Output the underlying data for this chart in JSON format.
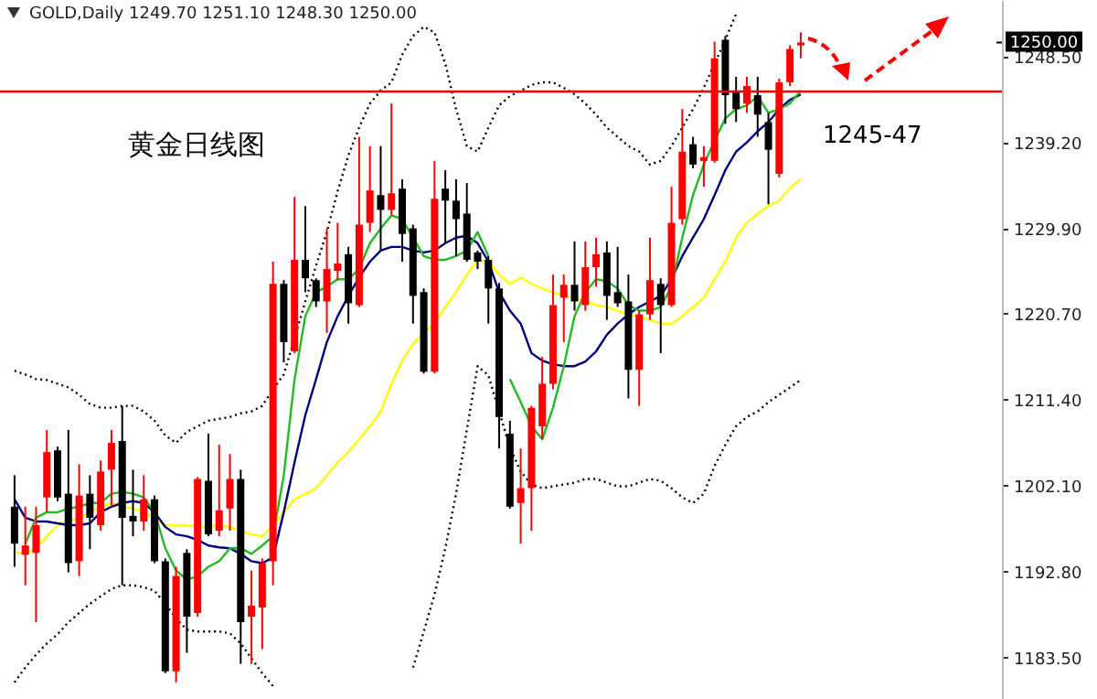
{
  "chart_data": {
    "type": "candlestick",
    "title": "GOLD,Daily 1249.70 1251.10 1248.30 1250.00",
    "categories": [
      null,
      null,
      null,
      null,
      null,
      null,
      null,
      null,
      null,
      null,
      null,
      null,
      null,
      null,
      null,
      null,
      null,
      null,
      null,
      null,
      null,
      null,
      null,
      null,
      null,
      null,
      null,
      null,
      null,
      null,
      null,
      null,
      null,
      null,
      null,
      null,
      null,
      null,
      null,
      null,
      null,
      null,
      null,
      null,
      null,
      null,
      null,
      null,
      null,
      null,
      null,
      null,
      null,
      null,
      null,
      null,
      null,
      null,
      null,
      null,
      null,
      null,
      null,
      null,
      null,
      null,
      null,
      null,
      null,
      null,
      null,
      null,
      null,
      null
    ],
    "ohlc": [
      [
        1199.8,
        1203.2,
        1193.3,
        1195.8
      ],
      [
        1194.6,
        1199.8,
        1191.3,
        1195.6
      ],
      [
        1194.8,
        1199.8,
        1187.3,
        1197.8
      ],
      [
        1200.8,
        1208.1,
        1199.2,
        1205.7
      ],
      [
        1205.9,
        1206.3,
        1200.4,
        1200.8
      ],
      [
        1201.2,
        1208.1,
        1192.7,
        1193.7
      ],
      [
        1193.9,
        1204.4,
        1192.3,
        1201.0
      ],
      [
        1201.2,
        1203.2,
        1195.2,
        1198.6
      ],
      [
        1197.8,
        1204.8,
        1197.2,
        1203.6
      ],
      [
        1203.8,
        1208.1,
        1199.8,
        1206.7
      ],
      [
        1206.9,
        1210.7,
        1191.3,
        1198.6
      ],
      [
        1198.8,
        1203.8,
        1196.6,
        1198.2
      ],
      [
        1198.2,
        1203.2,
        1197.2,
        1200.6
      ],
      [
        1200.6,
        1201.0,
        1193.7,
        1193.9
      ],
      [
        1193.9,
        1194.2,
        1181.8,
        1182.0
      ],
      [
        1182.0,
        1193.3,
        1180.8,
        1192.3
      ],
      [
        1194.8,
        1195.2,
        1184.0,
        1187.9
      ],
      [
        1188.3,
        1203.0,
        1187.9,
        1202.8
      ],
      [
        1202.6,
        1207.7,
        1196.6,
        1196.8
      ],
      [
        1197.2,
        1206.5,
        1196.6,
        1199.4
      ],
      [
        1199.6,
        1205.5,
        1197.2,
        1202.8
      ],
      [
        1202.8,
        1203.8,
        1182.8,
        1187.3
      ],
      [
        1187.9,
        1192.9,
        1182.8,
        1189.1
      ],
      [
        1188.9,
        1194.2,
        1184.4,
        1193.7
      ],
      [
        1193.9,
        1226.3,
        1191.3,
        1223.9
      ],
      [
        1223.9,
        1224.3,
        1215.4,
        1217.6
      ],
      [
        1216.6,
        1233.3,
        1216.4,
        1226.5
      ],
      [
        1226.5,
        1232.3,
        1223.0,
        1224.5
      ],
      [
        1224.3,
        1224.5,
        1221.4,
        1222.0
      ],
      [
        1222.0,
        1229.9,
        1218.6,
        1225.5
      ],
      [
        1225.3,
        1230.5,
        1224.3,
        1226.1
      ],
      [
        1227.1,
        1227.9,
        1219.6,
        1221.8
      ],
      [
        1221.6,
        1239.8,
        1221.4,
        1230.3
      ],
      [
        1230.5,
        1238.8,
        1229.5,
        1234.0
      ],
      [
        1233.5,
        1238.8,
        1227.5,
        1231.9
      ],
      [
        1231.9,
        1243.4,
        1231.3,
        1233.7
      ],
      [
        1234.2,
        1235.2,
        1226.3,
        1229.3
      ],
      [
        1229.9,
        1230.3,
        1219.6,
        1222.6
      ],
      [
        1223.0,
        1223.4,
        1214.2,
        1214.4
      ],
      [
        1214.4,
        1237.2,
        1214.2,
        1233.1
      ],
      [
        1234.2,
        1236.2,
        1228.3,
        1232.9
      ],
      [
        1232.9,
        1235.2,
        1226.9,
        1230.9
      ],
      [
        1231.5,
        1234.8,
        1226.3,
        1226.5
      ],
      [
        1227.3,
        1227.5,
        1225.5,
        1226.3
      ],
      [
        1226.5,
        1226.9,
        1219.6,
        1223.4
      ],
      [
        1223.4,
        1224.0,
        1206.1,
        1209.5
      ],
      [
        1207.7,
        1209.1,
        1199.6,
        1199.8
      ],
      [
        1200.2,
        1206.1,
        1195.8,
        1201.8
      ],
      [
        1201.8,
        1210.7,
        1197.2,
        1210.5
      ],
      [
        1208.5,
        1216.0,
        1207.1,
        1213.1
      ],
      [
        1213.1,
        1224.9,
        1212.5,
        1221.6
      ],
      [
        1222.4,
        1224.9,
        1217.6,
        1223.8
      ],
      [
        1223.8,
        1228.5,
        1221.0,
        1222.0
      ],
      [
        1221.6,
        1228.5,
        1221.0,
        1225.7
      ],
      [
        1225.7,
        1228.9,
        1223.6,
        1227.1
      ],
      [
        1227.3,
        1228.5,
        1220.0,
        1222.6
      ],
      [
        1223.0,
        1227.9,
        1221.4,
        1221.8
      ],
      [
        1222.0,
        1224.9,
        1211.5,
        1214.6
      ],
      [
        1214.6,
        1221.0,
        1210.7,
        1220.6
      ],
      [
        1220.6,
        1228.9,
        1220.0,
        1224.3
      ],
      [
        1223.9,
        1224.5,
        1216.4,
        1221.6
      ],
      [
        1221.6,
        1234.4,
        1221.4,
        1230.5
      ],
      [
        1230.9,
        1242.8,
        1230.3,
        1238.2
      ],
      [
        1239.0,
        1239.8,
        1236.4,
        1236.8
      ],
      [
        1237.2,
        1238.8,
        1234.4,
        1237.6
      ],
      [
        1237.2,
        1250.1,
        1237.0,
        1248.3
      ],
      [
        1250.3,
        1250.7,
        1241.2,
        1244.3
      ],
      [
        1244.7,
        1246.3,
        1241.4,
        1242.8
      ],
      [
        1243.4,
        1246.3,
        1242.4,
        1245.3
      ],
      [
        1244.3,
        1246.3,
        1239.8,
        1242.2
      ],
      [
        1241.4,
        1242.4,
        1232.5,
        1238.4
      ],
      [
        1235.8,
        1246.1,
        1235.4,
        1245.7
      ],
      [
        1245.7,
        1249.7,
        1245.3,
        1249.3
      ],
      [
        1249.7,
        1251.1,
        1248.3,
        1250.0
      ]
    ],
    "colors": [
      "#000000",
      "#ff0000",
      "#ff0000",
      "#ff0000",
      "#000000",
      "#000000",
      "#ff0000",
      "#000000",
      "#ff0000",
      "#ff0000",
      "#000000",
      "#000000",
      "#ff0000",
      "#000000",
      "#000000",
      "#ff0000",
      "#000000",
      "#ff0000",
      "#000000",
      "#ff0000",
      "#ff0000",
      "#000000",
      "#ff0000",
      "#ff0000",
      "#ff0000",
      "#000000",
      "#ff0000",
      "#000000",
      "#000000",
      "#ff0000",
      "#ff0000",
      "#000000",
      "#ff0000",
      "#ff0000",
      "#000000",
      "#ff0000",
      "#000000",
      "#000000",
      "#000000",
      "#ff0000",
      "#000000",
      "#000000",
      "#000000",
      "#000000",
      "#000000",
      "#000000",
      "#000000",
      "#ff0000",
      "#ff0000",
      "#ff0000",
      "#ff0000",
      "#ff0000",
      "#000000",
      "#ff0000",
      "#ff0000",
      "#000000",
      "#000000",
      "#000000",
      "#ff0000",
      "#ff0000",
      "#000000",
      "#ff0000",
      "#ff0000",
      "#000000",
      "#ff0000",
      "#ff0000",
      "#000000",
      "#000000",
      "#ff0000",
      "#000000",
      "#000000",
      "#ff0000",
      "#ff0000",
      "#ff0000"
    ],
    "ylim": [
      1179.0,
      1254.6
    ],
    "yticks": [
      {
        "value": 1248.5,
        "label": "1248.50"
      },
      {
        "value": 1239.2,
        "label": "1239.20"
      },
      {
        "value": 1229.9,
        "label": "1229.90"
      },
      {
        "value": 1220.7,
        "label": "1220.70"
      },
      {
        "value": 1211.4,
        "label": "1211.40"
      },
      {
        "value": 1202.1,
        "label": "1202.10"
      },
      {
        "value": 1192.8,
        "label": "1192.80"
      },
      {
        "value": 1183.5,
        "label": "1183.50"
      }
    ],
    "tick_labels": "y",
    "ref_lines": [
      {
        "axis": "y",
        "value": 1244.7,
        "color": "#ff0000"
      }
    ],
    "annotations": [
      "黄金日线图",
      "1245-47",
      "1250.00"
    ],
    "series": [
      {
        "type": "line",
        "color": "#000000",
        "line_style": "dotted",
        "values": [
          1214.5,
          1214.1,
          1213.6,
          1213.5,
          1213.1,
          1212.7,
          1211.9,
          1210.9,
          1210.5,
          1210.5,
          1210.7,
          1210.7,
          1210.1,
          1209.1,
          1207.5,
          1206.7,
          1207.9,
          1208.5,
          1209.1,
          1209.3,
          1209.5,
          1209.9,
          1210.1,
          1210.7,
          1212.5,
          1214.1,
          1218.0,
          1222.0,
          1225.9,
          1229.5,
          1233.9,
          1237.8,
          1240.8,
          1243.4,
          1244.8,
          1245.7,
          1248.7,
          1250.7,
          1251.7,
          1251.1,
          1247.7,
          1242.8,
          1238.8,
          1238.2,
          1240.8,
          1243.2,
          1244.2,
          1244.8,
          1245.4,
          1245.7,
          1245.7,
          1245.1,
          1244.4,
          1243.4,
          1242.2,
          1240.8,
          1239.8,
          1238.8,
          1238.2,
          1236.8,
          1237.2,
          1238.8,
          1240.8,
          1242.8,
          1245.1,
          1247.7,
          1250.3,
          1253.1,
          null,
          null,
          null,
          null,
          null,
          null
        ]
      },
      {
        "type": "line",
        "color": "#000000",
        "line_style": "dotted",
        "values": [
          1180.8,
          1182.4,
          1183.8,
          1185.0,
          1186.0,
          1187.3,
          1188.3,
          1189.3,
          1190.1,
          1190.9,
          1191.3,
          1191.3,
          1191.1,
          1190.7,
          1189.3,
          1187.7,
          1186.5,
          1186.3,
          1186.3,
          1186.3,
          1186.1,
          1185.0,
          1183.4,
          1181.8,
          1180.4,
          null,
          null,
          null,
          null,
          null,
          null,
          null,
          null,
          null,
          null,
          null,
          null,
          1182.4,
          1186.3,
          1190.3,
          1195.3,
          1201.2,
          1208.1,
          1215.0,
          1214.0,
          1210.1,
          1206.2,
          1203.6,
          1202.2,
          1201.8,
          1202.0,
          1202.2,
          1202.4,
          1202.8,
          1202.8,
          1202.4,
          1202.0,
          1202.0,
          1202.4,
          1202.8,
          1202.6,
          1201.8,
          1200.8,
          1200.2,
          1201.2,
          1204.2,
          1206.5,
          1208.5,
          1209.5,
          1210.1,
          1211.1,
          1211.9,
          1212.7,
          1213.5
        ]
      },
      {
        "type": "line",
        "color": "#ffff00",
        "line_style": "solid",
        "values": [
          1194.9,
          1194.7,
          1195.3,
          1196.6,
          1197.8,
          1198.2,
          1198.6,
          1199.2,
          1199.8,
          1200.2,
          1199.8,
          1199.6,
          1199.2,
          1198.6,
          1197.8,
          1197.8,
          1197.8,
          1197.6,
          1197.6,
          1197.8,
          1197.6,
          1197.2,
          1196.8,
          1196.6,
          1197.8,
          1199.2,
          1200.6,
          1201.2,
          1201.8,
          1203.2,
          1204.6,
          1205.7,
          1207.1,
          1208.5,
          1210.1,
          1213.1,
          1215.6,
          1217.4,
          1218.6,
          1219.6,
          1221.4,
          1223.0,
          1224.9,
          1226.5,
          1226.3,
          1224.9,
          1223.9,
          1224.6,
          1223.9,
          1223.4,
          1223.0,
          1222.6,
          1222.4,
          1222.0,
          1221.6,
          1221.4,
          1221.0,
          1220.6,
          1220.4,
          1220.0,
          1219.6,
          1219.6,
          1220.4,
          1221.4,
          1222.4,
          1224.4,
          1226.3,
          1228.9,
          1230.5,
          1231.5,
          1232.3,
          1232.9,
          1234.3,
          1235.2
        ]
      },
      {
        "type": "line",
        "color": "#000080",
        "line_style": "solid",
        "values": [
          1200.6,
          1198.6,
          1198.2,
          1198.2,
          1198.0,
          1197.8,
          1197.8,
          1198.0,
          1199.2,
          1199.8,
          1200.2,
          1200.4,
          1200.2,
          1199.2,
          1197.6,
          1196.8,
          1196.6,
          1196.2,
          1195.6,
          1195.4,
          1195.3,
          1194.7,
          1193.9,
          1193.7,
          1194.3,
          1199.2,
          1204.6,
          1209.7,
          1213.6,
          1217.6,
          1220.4,
          1222.6,
          1224.6,
          1226.3,
          1227.5,
          1227.9,
          1227.9,
          1227.5,
          1227.3,
          1227.5,
          1228.3,
          1228.9,
          1229.1,
          1228.3,
          1226.3,
          1223.0,
          1221.0,
          1219.6,
          1216.4,
          1215.6,
          1215.2,
          1215.0,
          1215.0,
          1215.5,
          1216.6,
          1218.4,
          1219.6,
          1220.6,
          1221.4,
          1222.0,
          1222.6,
          1224.4,
          1226.9,
          1228.9,
          1230.9,
          1233.5,
          1236.2,
          1238.2,
          1239.2,
          1240.4,
          1241.4,
          1242.8,
          1243.8,
          1244.4
        ]
      },
      {
        "type": "line",
        "color": "#22bb22",
        "line_style": "solid",
        "values": [
          null,
          1195.8,
          1198.6,
          1199.2,
          1199.2,
          1199.6,
          1199.8,
          1200.2,
          1200.2,
          1201.2,
          1201.4,
          1201.2,
          1200.8,
          1199.2,
          1195.3,
          1192.9,
          1191.9,
          1192.3,
          1193.3,
          1193.9,
          1195.3,
          1195.3,
          1194.7,
          1195.6,
          1196.6,
          1203.2,
          1213.6,
          1220.4,
          1223.0,
          1223.6,
          1224.4,
          1224.4,
          1225.5,
          1228.3,
          1229.9,
          1231.3,
          1230.9,
          1228.9,
          1226.9,
          1226.5,
          1226.5,
          1226.9,
          1227.5,
          1229.5,
          1226.9,
          null,
          1213.6,
          1211.1,
          1208.5,
          1207.1,
          1210.5,
          1215.0,
          1220.4,
          1223.0,
          1224.4,
          1224.2,
          1223.4,
          1221.6,
          1221.0,
          1221.0,
          1221.4,
          1223.6,
          1228.9,
          1233.5,
          1236.8,
          1239.4,
          1241.8,
          1242.8,
          1243.2,
          1244.2,
          1242.4,
          1242.8,
          1243.4,
          1244.8
        ]
      }
    ]
  }
}
